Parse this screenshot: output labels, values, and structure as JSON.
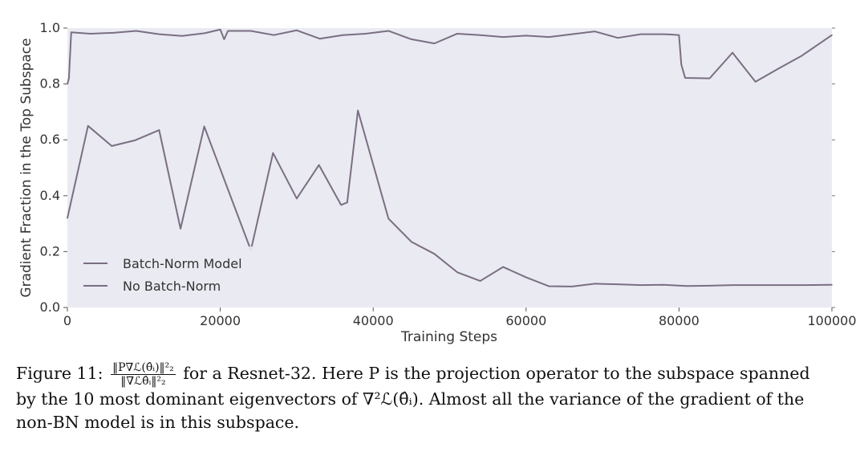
{
  "chart_data": {
    "type": "line",
    "xlabel": "Training Steps",
    "ylabel": "Gradient Fraction in the Top Subspace",
    "xlim": [
      0,
      100000
    ],
    "ylim": [
      0.0,
      1.0
    ],
    "xticks": [
      0,
      20000,
      40000,
      60000,
      80000,
      100000
    ],
    "yticks": [
      0.0,
      0.2,
      0.4,
      0.6,
      0.8,
      1.0
    ],
    "grid": false,
    "legend_position": "bottom-left",
    "background": "#eaeaf2",
    "series": [
      {
        "name": "Batch-Norm Model",
        "color": "#7a6f82",
        "x": [
          0,
          200,
          500,
          3000,
          6000,
          9000,
          12000,
          15000,
          18000,
          20000,
          20500,
          21000,
          24000,
          27000,
          30000,
          33000,
          36000,
          39000,
          42000,
          45000,
          48000,
          51000,
          54000,
          57000,
          60000,
          63000,
          66000,
          69000,
          72000,
          75000,
          78000,
          79000,
          80000,
          80300,
          80800,
          84000,
          87000,
          90000,
          93000,
          96000,
          100000
        ],
        "y": [
          0.8,
          0.82,
          0.985,
          0.98,
          0.983,
          0.99,
          0.978,
          0.972,
          0.982,
          0.995,
          0.96,
          0.99,
          0.99,
          0.975,
          0.992,
          0.962,
          0.975,
          0.98,
          0.99,
          0.96,
          0.945,
          0.98,
          0.975,
          0.968,
          0.973,
          0.968,
          0.978,
          0.988,
          0.965,
          0.978,
          0.978,
          0.977,
          0.975,
          0.87,
          0.822,
          0.82,
          0.912,
          0.808,
          0.855,
          0.9,
          0.975
        ]
      },
      {
        "name": "No Batch-Norm",
        "color": "#7a6f82",
        "x": [
          0,
          2700,
          5800,
          8800,
          12000,
          14800,
          17900,
          24000,
          26900,
          30000,
          32900,
          35800,
          36600,
          38000,
          42000,
          45000,
          48000,
          51000,
          54000,
          57000,
          60000,
          63000,
          66000,
          69000,
          72000,
          75000,
          78000,
          81000,
          84000,
          87000,
          90000,
          93000,
          96000,
          100000
        ],
        "y": [
          0.32,
          0.65,
          0.578,
          0.598,
          0.635,
          0.282,
          0.648,
          0.205,
          0.553,
          0.39,
          0.51,
          0.367,
          0.376,
          0.705,
          0.318,
          0.235,
          0.192,
          0.126,
          0.095,
          0.145,
          0.108,
          0.076,
          0.075,
          0.085,
          0.083,
          0.08,
          0.081,
          0.077,
          0.078,
          0.08,
          0.08,
          0.08,
          0.08,
          0.081
        ]
      }
    ]
  },
  "caption": {
    "figure_label": "Figure 11:",
    "frac_num": "‖P∇ℒ(θ̂ᵢ)‖²₂",
    "frac_den": "‖∇ℒθ̂ᵢ‖²₂",
    "line1_rest": "for a Resnet-32. Here P is the projection operator to the subspace spanned",
    "line2": "by the 10 most dominant eigenvectors of ∇²ℒ(θ̂ᵢ). Almost all the variance of the gradient of the",
    "line3": "non-BN model is in this subspace."
  }
}
